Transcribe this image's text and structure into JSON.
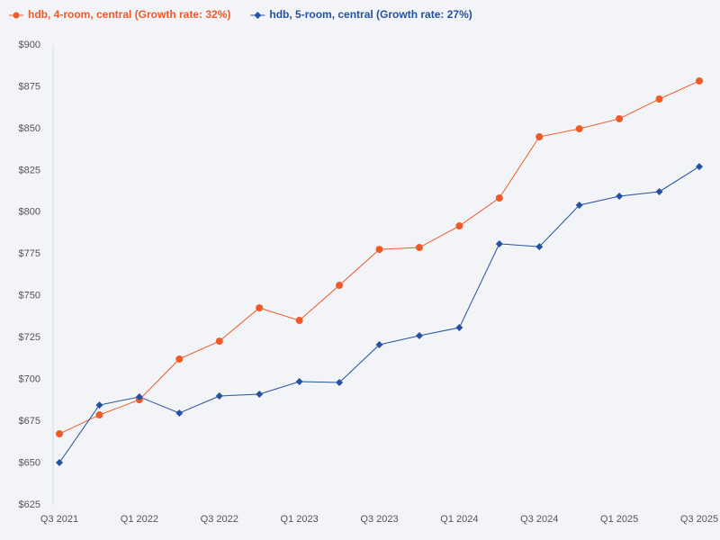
{
  "chart_data": {
    "type": "line",
    "categories": [
      "Q3 2021",
      null,
      "Q1 2022",
      null,
      "Q3 2022",
      null,
      "Q1 2023",
      null,
      "Q3 2023",
      null,
      "Q1 2024",
      null,
      "Q3 2024",
      null,
      "Q1 2025",
      null,
      "Q3 2025"
    ],
    "series": [
      {
        "name": "hdb, 4-room, central (Growth rate: 32%)",
        "color": "#f05a28",
        "marker": "circle",
        "values": [
          667.5,
          678.8,
          687.9,
          712.2,
          722.9,
          742.8,
          735.3,
          756.3,
          777.8,
          778.9,
          791.8,
          808.5,
          845.1,
          849.9,
          855.9,
          867.7,
          878.5
        ]
      },
      {
        "name": "hdb, 5-room, central (Growth rate: 27%)",
        "color": "#2451a0",
        "marker": "diamond",
        "values": [
          650.3,
          684.7,
          689.6,
          679.9,
          690.1,
          691.2,
          698.7,
          698.2,
          720.8,
          726.2,
          731.0,
          781.1,
          779.4,
          804.2,
          809.6,
          812.3,
          827.3
        ]
      }
    ],
    "ylim": [
      625,
      900
    ],
    "yticks": [
      {
        "value": 625,
        "label": "$625"
      },
      {
        "value": 650,
        "label": "$650"
      },
      {
        "value": 675,
        "label": "$675"
      },
      {
        "value": 700,
        "label": "$700"
      },
      {
        "value": 725,
        "label": "$725"
      },
      {
        "value": 750,
        "label": "$750"
      },
      {
        "value": 775,
        "label": "$775"
      },
      {
        "value": 800,
        "label": "$800"
      },
      {
        "value": 825,
        "label": "$825"
      },
      {
        "value": 850,
        "label": "$850"
      },
      {
        "value": 875,
        "label": "$875"
      },
      {
        "value": 900,
        "label": "$900"
      }
    ],
    "grid": false,
    "legend": "top-left"
  }
}
